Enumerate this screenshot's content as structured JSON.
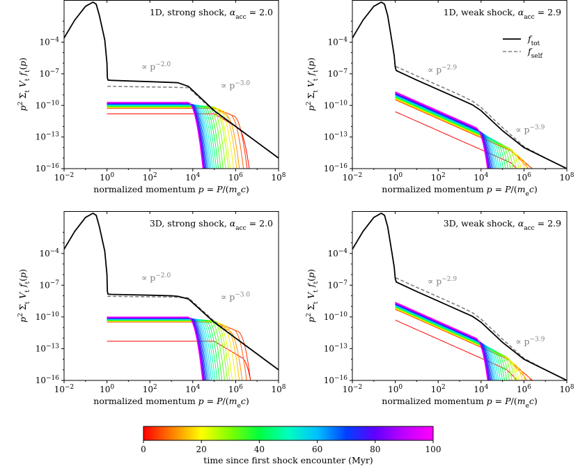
{
  "figure": {
    "colorbar": {
      "label": "time since first shock encounter (Myr)",
      "ticks": [
        "0",
        "20",
        "40",
        "60",
        "80",
        "100"
      ],
      "range": [
        0,
        100
      ],
      "colormap": [
        "#ff0000",
        "#ff8000",
        "#ffff00",
        "#80ff00",
        "#00ff40",
        "#00ffc0",
        "#00c0ff",
        "#0040ff",
        "#6000ff",
        "#c000ff",
        "#ff00ff"
      ]
    },
    "legend": {
      "tot_label": "f_tot",
      "self_label": "f_self"
    }
  },
  "chart_data": [
    {
      "type": "line",
      "title": "1D, strong shock, α_acc = 2.0",
      "xlabel": "normalized momentum p = P/(m_e c)",
      "ylabel": "p² Σ_t V_t f_t(p)",
      "xlim_log10": [
        -2,
        8
      ],
      "ylim_log10": [
        -16,
        0
      ],
      "xticks": [
        "10^-2",
        "10^0",
        "10^2",
        "10^4",
        "10^6",
        "10^8"
      ],
      "yticks": [
        "10^-16",
        "10^-13",
        "10^-10",
        "10^-7",
        "10^-4"
      ],
      "alpha_acc": 2.0,
      "annotations": [
        {
          "text": "∝ p^-2.0",
          "x_log10": 1.6,
          "y_log10": -6.6
        },
        {
          "text": "∝ p^-3.0",
          "x_log10": 5.3,
          "y_log10": -8.4
        }
      ],
      "f_tot": {
        "x_log10": [
          -2,
          -1.5,
          -1.0,
          -0.65,
          -0.5,
          -0.35,
          -0.1,
          0.0,
          0.02,
          0.05,
          0.2,
          1,
          2,
          3,
          3.3,
          3.8,
          5,
          6,
          7,
          8
        ],
        "y_log10": [
          -3.6,
          -1.9,
          -0.6,
          -0.2,
          -0.4,
          -1.5,
          -3.8,
          -6.0,
          -7.4,
          -7.6,
          -7.62,
          -7.68,
          -7.75,
          -7.82,
          -7.85,
          -8.2,
          -10.5,
          -12.0,
          -13.5,
          -15.0
        ]
      },
      "f_self": {
        "x_log10": [
          0.02,
          0.1,
          1,
          2,
          3,
          3.8,
          5,
          6,
          7,
          8
        ],
        "y_log10": [
          -8.2,
          -8.2,
          -8.22,
          -8.25,
          -8.28,
          -8.32,
          -10.6,
          -12.0,
          -13.5,
          -15.0
        ]
      },
      "f_t_series": {
        "count": 28,
        "top_log10": -9.7,
        "bottom_log10": -10.3,
        "cutoff_min_log10": 3.75,
        "cutoff_max_log10": 6.1,
        "tail_slope": 1.0,
        "fade_start_log10": 5.0,
        "low_outlier_log10": -10.8
      }
    },
    {
      "type": "line",
      "title": "1D, weak shock, α_acc = 2.9",
      "xlabel": "normalized momentum p = P/(m_e c)",
      "ylabel": "p² Σ_t V_t f_t(p)",
      "xlim_log10": [
        -2,
        8
      ],
      "ylim_log10": [
        -16,
        0
      ],
      "xticks": [
        "10^-2",
        "10^0",
        "10^2",
        "10^4",
        "10^6",
        "10^8"
      ],
      "yticks": [
        "10^-16",
        "10^-13",
        "10^-10",
        "10^-7",
        "10^-4"
      ],
      "alpha_acc": 2.9,
      "annotations": [
        {
          "text": "∝ p^-2.9",
          "x_log10": 1.5,
          "y_log10": -6.9
        },
        {
          "text": "∝ p^-3.9",
          "x_log10": 5.6,
          "y_log10": -12.6
        }
      ],
      "f_tot": {
        "x_log10": [
          -2,
          -1.5,
          -1.0,
          -0.65,
          -0.5,
          -0.35,
          -0.15,
          -0.05,
          0.0,
          0.05,
          1,
          2,
          3,
          3.6,
          4,
          5,
          6,
          7,
          8
        ],
        "y_log10": [
          -3.6,
          -1.9,
          -0.6,
          -0.2,
          -0.4,
          -1.5,
          -4.0,
          -5.3,
          -6.4,
          -6.7,
          -7.6,
          -8.5,
          -9.4,
          -9.95,
          -10.5,
          -12.4,
          -14.0,
          -15.0,
          -16.0
        ]
      },
      "f_self": {
        "x_log10": [
          0.02,
          1,
          2,
          3,
          3.6,
          4,
          5,
          6,
          7,
          8
        ],
        "y_log10": [
          -6.3,
          -7.2,
          -8.1,
          -9.0,
          -9.6,
          -10.2,
          -12.1,
          -13.9,
          -15.0,
          -16.0
        ]
      },
      "legend_entries": [
        "f_tot",
        "f_self"
      ],
      "f_t_series": {
        "count": 30,
        "top_log10": -8.7,
        "bottom_log10": -9.5,
        "cutoff_min_log10": 3.75,
        "cutoff_max_log10": 6.8,
        "slope": 0.9,
        "tail_slope": 1.0,
        "fade_start_log10": 5.4,
        "low_outlier_log10": -10.6
      }
    },
    {
      "type": "line",
      "title": "3D, strong shock, α_acc = 2.0",
      "xlabel": "normalized momentum p = P/(m_e c)",
      "ylabel": "p² Σ_t V_t f_t(p)",
      "xlim_log10": [
        -2,
        8
      ],
      "ylim_log10": [
        -16,
        0
      ],
      "xticks": [
        "10^-2",
        "10^0",
        "10^2",
        "10^4",
        "10^6",
        "10^8"
      ],
      "yticks": [
        "10^-16",
        "10^-13",
        "10^-10",
        "10^-7",
        "10^-4"
      ],
      "alpha_acc": 2.0,
      "annotations": [
        {
          "text": "∝ p^-2.0",
          "x_log10": 1.6,
          "y_log10": -6.6
        },
        {
          "text": "∝ p^-3.0",
          "x_log10": 5.3,
          "y_log10": -8.4
        }
      ],
      "f_tot": {
        "x_log10": [
          -2,
          -1.5,
          -1.0,
          -0.65,
          -0.5,
          -0.35,
          -0.1,
          0.0,
          0.02,
          0.05,
          0.2,
          1,
          2,
          3,
          3.3,
          3.8,
          5,
          6,
          7,
          8
        ],
        "y_log10": [
          -3.6,
          -1.9,
          -0.6,
          -0.2,
          -0.4,
          -1.5,
          -3.8,
          -6.0,
          -7.6,
          -7.85,
          -7.87,
          -7.9,
          -7.95,
          -8.0,
          -8.05,
          -8.3,
          -10.5,
          -12.0,
          -13.5,
          -15.0
        ]
      },
      "f_self": {
        "x_log10": [
          0.02,
          0.1,
          1,
          2,
          3,
          3.8,
          5,
          6,
          7,
          8
        ],
        "y_log10": [
          -8.05,
          -8.05,
          -8.07,
          -8.1,
          -8.12,
          -8.2,
          -10.4,
          -12.0,
          -13.5,
          -15.0
        ]
      },
      "f_t_series": {
        "count": 28,
        "top_log10": -10.0,
        "bottom_log10": -10.5,
        "cutoff_min_log10": 3.75,
        "cutoff_max_log10": 6.3,
        "tail_slope": 1.0,
        "fade_start_log10": 5.0,
        "low_outlier_log10": -12.3
      }
    },
    {
      "type": "line",
      "title": "3D, weak shock, α_acc = 2.9",
      "xlabel": "normalized momentum p = P/(m_e c)",
      "ylabel": "p² Σ_t V_t f_t(p)",
      "xlim_log10": [
        -2,
        8
      ],
      "ylim_log10": [
        -16,
        0
      ],
      "xticks": [
        "10^-2",
        "10^0",
        "10^2",
        "10^4",
        "10^6",
        "10^8"
      ],
      "yticks": [
        "10^-16",
        "10^-13",
        "10^-10",
        "10^-7",
        "10^-4"
      ],
      "alpha_acc": 2.9,
      "annotations": [
        {
          "text": "∝ p^-2.9",
          "x_log10": 1.5,
          "y_log10": -6.9
        },
        {
          "text": "∝ p^-3.9",
          "x_log10": 5.6,
          "y_log10": -12.6
        }
      ],
      "f_tot": {
        "x_log10": [
          -2,
          -1.5,
          -1.0,
          -0.65,
          -0.5,
          -0.35,
          -0.15,
          -0.05,
          0.0,
          0.05,
          1,
          2,
          3,
          3.6,
          4,
          5,
          6,
          7,
          8
        ],
        "y_log10": [
          -3.6,
          -1.9,
          -0.6,
          -0.2,
          -0.4,
          -1.5,
          -4.0,
          -5.3,
          -6.4,
          -6.7,
          -7.6,
          -8.5,
          -9.4,
          -9.95,
          -10.5,
          -12.4,
          -14.0,
          -15.0,
          -16.0
        ]
      },
      "f_self": {
        "x_log10": [
          0.02,
          1,
          2,
          3,
          3.6,
          4,
          5,
          6,
          7,
          8
        ],
        "y_log10": [
          -6.3,
          -7.2,
          -8.1,
          -9.0,
          -9.6,
          -10.2,
          -12.1,
          -13.9,
          -15.0,
          -16.0
        ]
      },
      "f_t_series": {
        "count": 30,
        "top_log10": -8.6,
        "bottom_log10": -9.3,
        "cutoff_min_log10": 3.75,
        "cutoff_max_log10": 6.6,
        "slope": 0.9,
        "tail_slope": 1.0,
        "fade_start_log10": 5.2,
        "low_outlier_log10": -10.3
      }
    }
  ]
}
